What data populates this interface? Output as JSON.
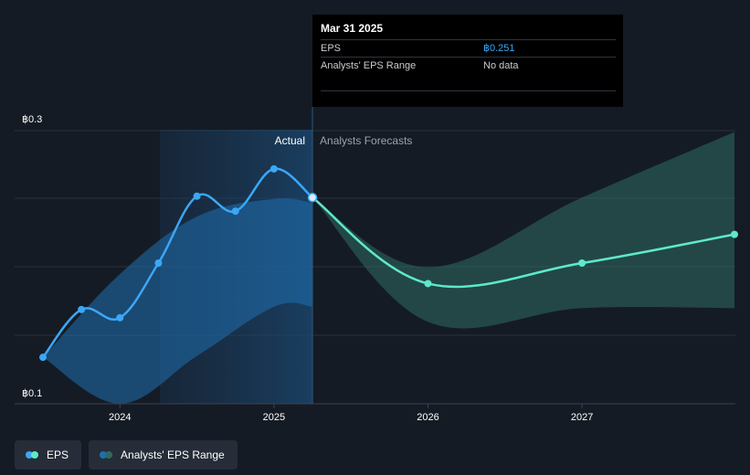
{
  "chart_data": {
    "type": "line",
    "title": "",
    "xlabel": "",
    "ylabel": "",
    "x_ticks": [
      "2024",
      "2025",
      "2026",
      "2027"
    ],
    "x_range": [
      2023.5,
      2027.99
    ],
    "y_range": [
      0.1,
      0.3
    ],
    "y_tick_labels": [
      "฿0.3",
      "฿0.1"
    ],
    "region_labels": {
      "actual": "Actual",
      "forecast": "Analysts Forecasts"
    },
    "current_x": 2025.25,
    "series": [
      {
        "name": "EPS",
        "color": "#3ba7f5",
        "points": [
          {
            "x": 2023.5,
            "y": 0.134
          },
          {
            "x": 2023.75,
            "y": 0.169
          },
          {
            "x": 2024.0,
            "y": 0.163
          },
          {
            "x": 2024.25,
            "y": 0.203
          },
          {
            "x": 2024.5,
            "y": 0.252
          },
          {
            "x": 2024.75,
            "y": 0.241
          },
          {
            "x": 2025.0,
            "y": 0.272
          },
          {
            "x": 2025.25,
            "y": 0.251
          }
        ]
      },
      {
        "name": "EPS Forecast",
        "color": "#5ee8cc",
        "points": [
          {
            "x": 2025.25,
            "y": 0.251
          },
          {
            "x": 2026.0,
            "y": 0.188
          },
          {
            "x": 2027.0,
            "y": 0.203
          },
          {
            "x": 2027.99,
            "y": 0.224
          }
        ]
      }
    ],
    "actual_range_band": {
      "color": "#1f6fb0",
      "upper": [
        {
          "x": 2023.5,
          "y": 0.134
        },
        {
          "x": 2024.0,
          "y": 0.195
        },
        {
          "x": 2024.5,
          "y": 0.237
        },
        {
          "x": 2025.0,
          "y": 0.25
        },
        {
          "x": 2025.25,
          "y": 0.247
        }
      ],
      "lower": [
        {
          "x": 2023.5,
          "y": 0.134
        },
        {
          "x": 2024.0,
          "y": 0.1
        },
        {
          "x": 2024.5,
          "y": 0.135
        },
        {
          "x": 2025.0,
          "y": 0.171
        },
        {
          "x": 2025.25,
          "y": 0.171
        }
      ]
    },
    "forecast_range_band": {
      "color": "#2e6b63",
      "upper": [
        {
          "x": 2025.25,
          "y": 0.251
        },
        {
          "x": 2026.0,
          "y": 0.2
        },
        {
          "x": 2027.0,
          "y": 0.251
        },
        {
          "x": 2027.99,
          "y": 0.299
        }
      ],
      "lower": [
        {
          "x": 2025.25,
          "y": 0.251
        },
        {
          "x": 2026.0,
          "y": 0.16
        },
        {
          "x": 2027.0,
          "y": 0.17
        },
        {
          "x": 2027.99,
          "y": 0.17
        }
      ]
    }
  },
  "tooltip": {
    "date": "Mar 31 2025",
    "rows": [
      {
        "label": "EPS",
        "value": "฿0.251"
      },
      {
        "label": "Analysts' EPS Range",
        "value": "No data"
      }
    ]
  },
  "legend": [
    {
      "label": "EPS",
      "colors": [
        "#3ba7f5",
        "#5ee8cc"
      ]
    },
    {
      "label": "Analysts' EPS Range",
      "colors": [
        "#1f6fb0",
        "#2e6b63"
      ]
    }
  ]
}
